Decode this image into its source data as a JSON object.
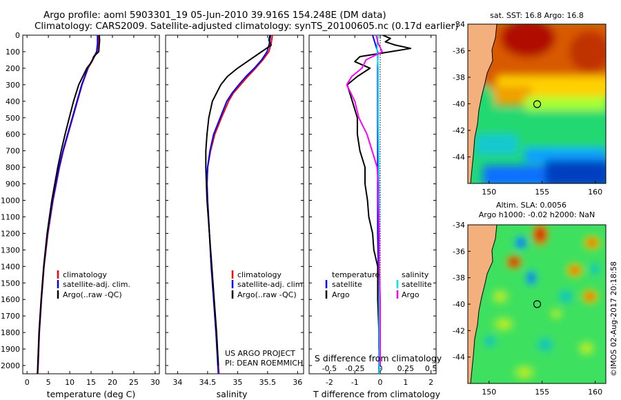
{
  "header": {
    "line1": "Argo profile: aoml 5903301_19 05-Jun-2010 39.916S 154.248E (DM data)",
    "line2": "Climatology: CARS2009. Satellite-adjusted climatology: synTS_20100605.nc (0.17d earlier)"
  },
  "colors": {
    "climatology": "#ff0000",
    "satellite": "#0000ff",
    "argo": "#000000",
    "salinity_satellite": "#00e5ee",
    "salinity_argo": "#ff00ff",
    "land": "#f4b07c"
  },
  "project": {
    "line1": "US ARGO PROJECT",
    "line2": "PI: DEAN ROEMMICH"
  },
  "watermark": "©IMOS 02-Aug-2017 20:18:58",
  "chart_data": [
    {
      "type": "line",
      "panel": "temperature",
      "xlabel": "temperature (deg C)",
      "xlim": [
        -1,
        31
      ],
      "ylim": [
        0,
        2050
      ],
      "xticks": [
        0,
        5,
        10,
        15,
        20,
        25,
        30
      ],
      "yticks": [
        0,
        100,
        200,
        300,
        400,
        500,
        600,
        700,
        800,
        900,
        1000,
        1100,
        1200,
        1300,
        1400,
        1500,
        1600,
        1700,
        1800,
        1900,
        2000
      ],
      "legend": [
        "climatology",
        "satellite-adj. clim.",
        "Argo(..raw -QC)"
      ],
      "series": [
        {
          "name": "climatology",
          "color": "#ff0000",
          "depth": [
            0,
            50,
            100,
            150,
            200,
            300,
            400,
            500,
            600,
            700,
            800,
            1000,
            1200,
            1400,
            1600,
            1800,
            2000,
            2050
          ],
          "values": [
            16.8,
            16.7,
            16.4,
            15.4,
            14.3,
            12.9,
            11.8,
            10.7,
            9.6,
            8.5,
            7.6,
            6.1,
            4.9,
            4.0,
            3.4,
            2.9,
            2.6,
            2.5
          ]
        },
        {
          "name": "satellite-adj. clim.",
          "color": "#0000ff",
          "depth": [
            0,
            50,
            100,
            150,
            200,
            300,
            400,
            500,
            600,
            700,
            800,
            1000,
            1200,
            1400,
            1600,
            1800,
            2000,
            2050
          ],
          "values": [
            16.5,
            16.5,
            16.3,
            15.3,
            14.2,
            12.8,
            11.7,
            10.6,
            9.5,
            8.4,
            7.5,
            6.0,
            4.8,
            3.95,
            3.35,
            2.85,
            2.55,
            2.45
          ]
        },
        {
          "name": "Argo(..raw -QC)",
          "color": "#000000",
          "depth": [
            0,
            30,
            60,
            100,
            130,
            160,
            200,
            300,
            400,
            500,
            600,
            700,
            800,
            900,
            1000,
            1200,
            1400,
            1600,
            1800,
            2000,
            2050
          ],
          "values": [
            16.9,
            17.0,
            16.9,
            16.8,
            15.6,
            15.2,
            14.0,
            12.1,
            10.9,
            9.9,
            8.9,
            8.0,
            7.2,
            6.5,
            5.8,
            4.7,
            3.9,
            3.3,
            2.8,
            2.5,
            2.45
          ]
        }
      ]
    },
    {
      "type": "line",
      "panel": "salinity",
      "xlabel": "salinity",
      "xlim": [
        33.8,
        36.1
      ],
      "ylim": [
        0,
        2050
      ],
      "xticks": [
        34,
        34.5,
        35,
        35.5,
        36
      ],
      "legend": [
        "climatology",
        "satellite-adj. clim.",
        "Argo(..raw -QC)"
      ],
      "series": [
        {
          "name": "climatology",
          "color": "#ff0000",
          "depth": [
            0,
            50,
            100,
            150,
            200,
            250,
            300,
            350,
            400,
            500,
            600,
            700,
            800,
            900,
            1000,
            1200,
            1400,
            1600,
            1800,
            2000,
            2050
          ],
          "values": [
            35.58,
            35.56,
            35.52,
            35.42,
            35.3,
            35.17,
            35.05,
            34.93,
            34.85,
            34.73,
            34.62,
            34.55,
            34.5,
            34.49,
            34.5,
            34.53,
            34.56,
            34.6,
            34.64,
            34.68,
            34.69
          ]
        },
        {
          "name": "satellite-adj. clim.",
          "color": "#0000ff",
          "depth": [
            0,
            50,
            100,
            150,
            200,
            250,
            300,
            350,
            400,
            500,
            600,
            700,
            800,
            900,
            1000,
            1200,
            1400,
            1600,
            1800,
            2000,
            2050
          ],
          "values": [
            35.55,
            35.53,
            35.49,
            35.4,
            35.28,
            35.14,
            35.02,
            34.91,
            34.82,
            34.71,
            34.6,
            34.54,
            34.5,
            34.49,
            34.5,
            34.53,
            34.56,
            34.6,
            34.64,
            34.67,
            34.68
          ]
        },
        {
          "name": "Argo(..raw -QC)",
          "color": "#000000",
          "depth": [
            0,
            30,
            60,
            100,
            150,
            200,
            250,
            300,
            350,
            400,
            500,
            600,
            700,
            800,
            900,
            1000,
            1200,
            1400,
            1600,
            1800,
            2000
          ],
          "values": [
            35.54,
            35.52,
            35.56,
            35.4,
            35.2,
            35.0,
            34.83,
            34.72,
            34.65,
            34.58,
            34.52,
            34.49,
            34.47,
            34.47,
            34.48,
            34.49,
            34.53,
            34.57,
            34.61,
            34.65,
            34.68
          ]
        }
      ]
    },
    {
      "type": "line",
      "panel": "difference",
      "xlabel": "T difference from climatology",
      "xlabel_top": "S difference from climatology",
      "xlim": [
        -2.8,
        2.2
      ],
      "ylim": [
        0,
        2050
      ],
      "xticks": [
        -2,
        -1,
        0,
        1,
        2
      ],
      "xticks_s": [
        "-0.5",
        "-0.25",
        "0",
        "0.25",
        "0.5"
      ],
      "legend_temperature": {
        "title": "temperature",
        "items": [
          "satellite",
          "Argo"
        ]
      },
      "legend_salinity": {
        "title": "salinity",
        "items": [
          "satellite",
          "Argo"
        ]
      },
      "series": [
        {
          "name": "temperature satellite",
          "color": "#0000ff",
          "depth": [
            0,
            50,
            100,
            150,
            200,
            400,
            800,
            1200,
            1600,
            2050
          ],
          "values": [
            -0.3,
            -0.2,
            -0.1,
            -0.1,
            -0.1,
            -0.1,
            -0.1,
            -0.1,
            -0.05,
            -0.05
          ]
        },
        {
          "name": "temperature Argo",
          "color": "#000000",
          "depth": [
            0,
            20,
            40,
            60,
            80,
            100,
            130,
            160,
            200,
            250,
            300,
            400,
            500,
            600,
            700,
            800,
            900,
            1000,
            1100,
            1200,
            1300,
            1400,
            1600,
            1800,
            1900
          ],
          "values": [
            0.1,
            0.4,
            0.2,
            0.6,
            1.2,
            0.4,
            -0.8,
            -1.0,
            -0.4,
            -0.9,
            -1.3,
            -1.1,
            -0.9,
            -0.9,
            -0.8,
            -0.6,
            -0.6,
            -0.5,
            -0.45,
            -0.3,
            -0.25,
            -0.1,
            -0.1,
            -0.05,
            -0.05
          ]
        },
        {
          "name": "salinity satellite",
          "color": "#00e5ee",
          "depth": [
            0,
            50,
            100,
            200,
            500,
            1000,
            1500,
            2050
          ],
          "values": [
            -0.02,
            -0.03,
            -0.03,
            -0.02,
            -0.02,
            -0.01,
            -0.01,
            -0.01
          ]
        },
        {
          "name": "salinity Argo",
          "color": "#ff00ff",
          "depth": [
            0,
            50,
            100,
            150,
            200,
            250,
            300,
            350,
            400,
            500,
            600,
            700,
            800,
            900,
            1000,
            1200,
            1400,
            1600,
            1800,
            2000
          ],
          "values": [
            -0.04,
            -0.02,
            0.02,
            -0.14,
            -0.18,
            -0.28,
            -0.33,
            -0.29,
            -0.25,
            -0.21,
            -0.13,
            -0.08,
            -0.03,
            -0.02,
            -0.02,
            -0.01,
            -0.01,
            0.0,
            0.0,
            0.0
          ]
        }
      ]
    },
    {
      "type": "heatmap",
      "panel": "sst_map",
      "title": "sat. SST: 16.8 Argo: 16.8",
      "xlim": [
        148,
        161
      ],
      "ylim": [
        -46,
        -34
      ],
      "xticks": [
        150,
        155,
        160
      ],
      "yticks": [
        -34,
        -36,
        -38,
        -40,
        -42,
        -44
      ],
      "marker": {
        "lon": 154.248,
        "lat": -39.916
      }
    },
    {
      "type": "heatmap",
      "panel": "sla_map",
      "title_line1": "Altim. SLA: 0.0056",
      "title_line2": "Argo h1000: -0.02 h2000: NaN",
      "xlim": [
        148,
        161
      ],
      "ylim": [
        -46,
        -34
      ],
      "xticks": [
        150,
        155,
        160
      ],
      "yticks": [
        -34,
        -36,
        -38,
        -40,
        -42,
        -44
      ],
      "marker": {
        "lon": 154.248,
        "lat": -39.916
      }
    }
  ]
}
